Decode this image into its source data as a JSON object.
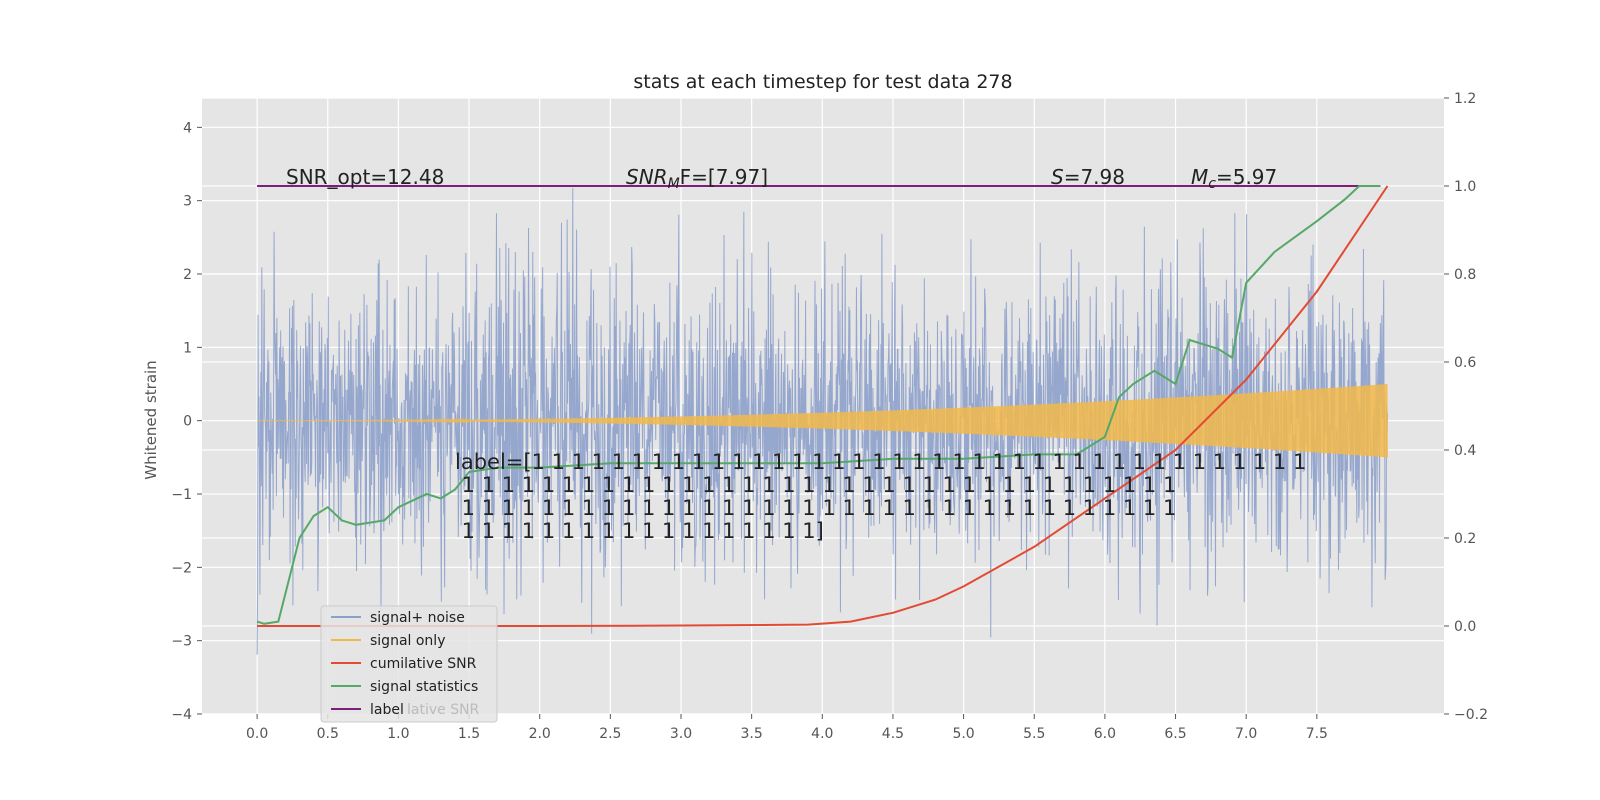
{
  "chart_data": {
    "type": "line",
    "title": "stats at each timestep for test data 278",
    "ylabel": "Whitened strain",
    "xlabel": "",
    "xlim": [
      -0.39,
      8.4
    ],
    "ylim": [
      -4,
      4.4
    ],
    "y2lim": [
      -0.2,
      1.2
    ],
    "grid": true,
    "xticks": [
      "0.0",
      "0.5",
      "1.0",
      "1.5",
      "2.0",
      "2.5",
      "3.0",
      "3.5",
      "4.0",
      "4.5",
      "5.0",
      "5.5",
      "6.0",
      "6.5",
      "7.0",
      "7.5"
    ],
    "yticks": [
      "4",
      "3",
      "2",
      "1",
      "0",
      "−1",
      "−2",
      "−3",
      "−4"
    ],
    "y2ticks": [
      "1.2",
      "1.0",
      "0.8",
      "0.6",
      "0.4",
      "0.2",
      "0.0",
      "−0.2"
    ],
    "legend_position": "lower-left",
    "annotations": {
      "snr_opt": "SNR_opt=12.48",
      "snr_mf_sym": "SNR",
      "snr_mf_sub": "M",
      "snr_mf_rest": "F=[7.97]",
      "s_sym": "S",
      "s_rest": "=7.98",
      "mc_sym": "M",
      "mc_sub": "c",
      "mc_rest": "=5.97",
      "label_lines": [
        "label=[1 1 1 1 1 1 1 1 1 1 1 1 1 1 1 1 1 1 1 1 1 1 1 1 1 1 1 1 1 1 1 1 1 1 1 1 1 1 1",
        " 1 1 1 1 1 1 1 1 1 1 1 1 1 1 1 1 1 1 1 1 1 1 1 1 1 1 1 1 1 1 1 1 1 1 1 1",
        " 1 1 1 1 1 1 1 1 1 1 1 1 1 1 1 1 1 1 1 1 1 1 1 1 1 1 1 1 1 1 1 1 1 1 1 1",
        " 1 1 1 1 1 1 1 1 1 1 1 1 1 1 1 1 1 1]"
      ]
    },
    "series": [
      {
        "name": "signal+ noise",
        "color": "#8da0cb",
        "axis": "left",
        "x_range": [
          0,
          8
        ],
        "approx_std": 1.0
      },
      {
        "name": "signal only",
        "color": "#f2b84a",
        "axis": "left",
        "x_range": [
          0,
          8
        ],
        "amplitude_start": 0.0,
        "amplitude_end": 0.5
      },
      {
        "name": "cumilative SNR",
        "color": "#e24a33",
        "axis": "right",
        "x": [
          0,
          1,
          2,
          3,
          3.9,
          4.2,
          4.5,
          4.8,
          5.0,
          5.5,
          6.0,
          6.5,
          7.0,
          7.5,
          8.0
        ],
        "values": [
          0.0,
          0.0,
          0.0,
          0.001,
          0.003,
          0.01,
          0.03,
          0.06,
          0.09,
          0.18,
          0.29,
          0.4,
          0.56,
          0.76,
          1.0
        ]
      },
      {
        "name": "signal statistics",
        "color": "#55a868",
        "axis": "right",
        "x": [
          0,
          0.05,
          0.15,
          0.3,
          0.4,
          0.5,
          0.6,
          0.7,
          0.9,
          1.0,
          1.2,
          1.3,
          1.4,
          1.5,
          1.7,
          2.0,
          2.5,
          3.0,
          3.5,
          4.0,
          4.5,
          5.0,
          5.5,
          5.8,
          6.0,
          6.1,
          6.2,
          6.35,
          6.5,
          6.6,
          6.8,
          6.9,
          7.0,
          7.2,
          7.5,
          7.7,
          7.8,
          7.95
        ],
        "values": [
          0.01,
          0.005,
          0.01,
          0.2,
          0.25,
          0.27,
          0.24,
          0.23,
          0.24,
          0.27,
          0.3,
          0.29,
          0.31,
          0.35,
          0.36,
          0.36,
          0.37,
          0.37,
          0.37,
          0.37,
          0.38,
          0.38,
          0.39,
          0.39,
          0.43,
          0.52,
          0.55,
          0.58,
          0.55,
          0.65,
          0.63,
          0.61,
          0.78,
          0.85,
          0.92,
          0.97,
          1.0,
          1.0
        ]
      },
      {
        "name": "label",
        "color": "#7a1f7a",
        "axis": "right",
        "x": [
          0,
          7.95
        ],
        "values": [
          1.0,
          1.0
        ]
      }
    ],
    "legend_ghost_text": "lative SNR"
  }
}
